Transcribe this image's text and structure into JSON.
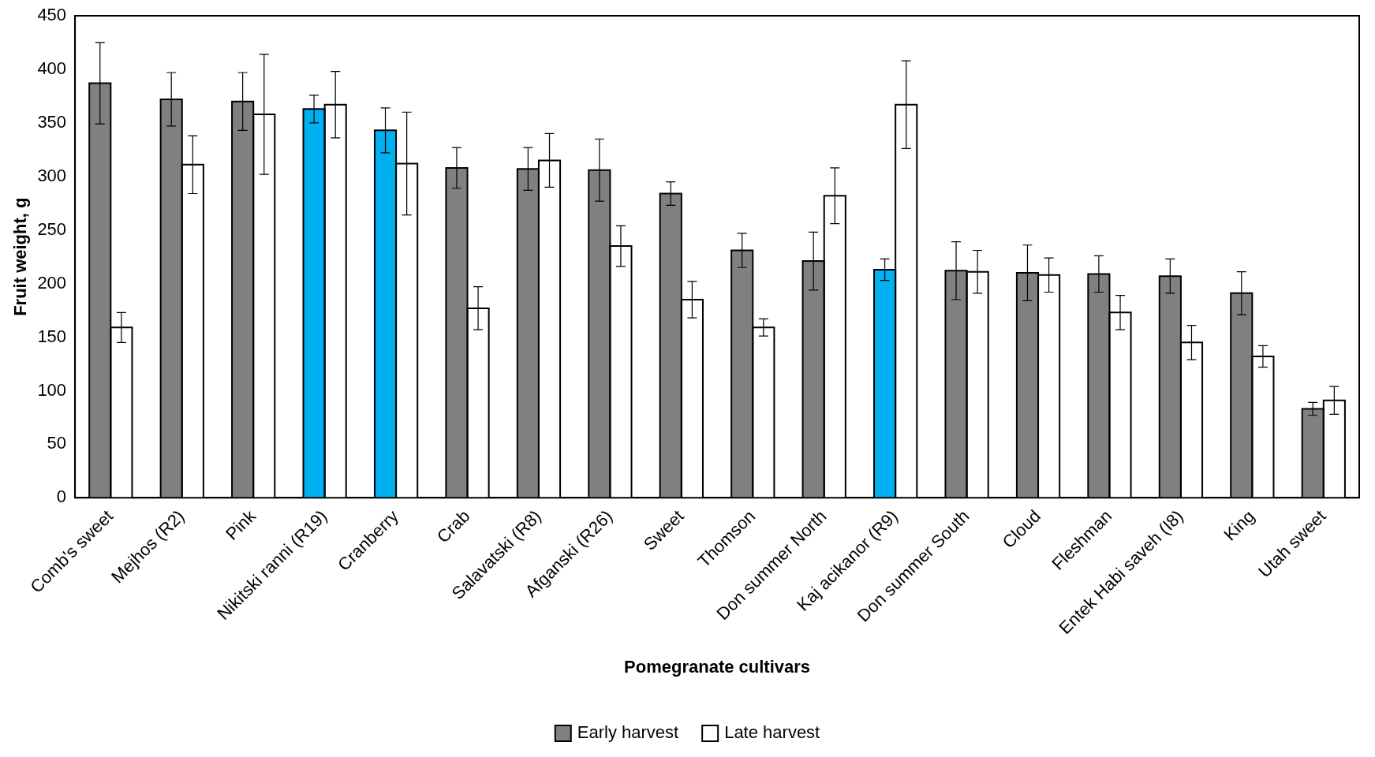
{
  "chart_data": {
    "type": "bar",
    "xlabel": "Pomegranate cultivars",
    "ylabel": "Fruit weight, g",
    "categories": [
      "Comb's sweet",
      "Mejhos (R2)",
      "Pink",
      "Nikitski ranni (R19)",
      "Cranberry",
      "Crab",
      "Salavatski (R8)",
      "Afganski (R26)",
      "Sweet",
      "Thomson",
      "Don summer North",
      "Kaj acikanor (R9)",
      "Don summer South",
      "Cloud",
      "Fleshman",
      "Entek Habi saveh (I8)",
      "King",
      "Utah sweet"
    ],
    "series": [
      {
        "name": "Early harvest",
        "color": "#808080",
        "colors": [
          "#808080",
          "#808080",
          "#808080",
          "#00b0f0",
          "#00b0f0",
          "#808080",
          "#808080",
          "#808080",
          "#808080",
          "#808080",
          "#808080",
          "#00b0f0",
          "#808080",
          "#808080",
          "#808080",
          "#808080",
          "#808080",
          "#808080"
        ],
        "values": [
          387,
          372,
          370,
          363,
          343,
          308,
          307,
          306,
          284,
          231,
          221,
          213,
          212,
          210,
          209,
          207,
          191,
          83
        ],
        "errors": [
          38,
          25,
          27,
          13,
          21,
          19,
          20,
          29,
          11,
          16,
          27,
          10,
          27,
          26,
          17,
          16,
          20,
          6
        ]
      },
      {
        "name": "Late harvest",
        "color": "#ffffff",
        "values": [
          159,
          311,
          358,
          367,
          312,
          177,
          315,
          235,
          185,
          159,
          282,
          367,
          211,
          208,
          173,
          145,
          132,
          91
        ],
        "errors": [
          14,
          27,
          56,
          31,
          48,
          20,
          25,
          19,
          17,
          8,
          26,
          41,
          20,
          16,
          16,
          16,
          10,
          13
        ]
      }
    ],
    "ylim": [
      0,
      450
    ],
    "yticks": [
      0,
      50,
      100,
      150,
      200,
      250,
      300,
      350,
      400,
      450
    ],
    "grid": false,
    "legend": "bottom"
  }
}
